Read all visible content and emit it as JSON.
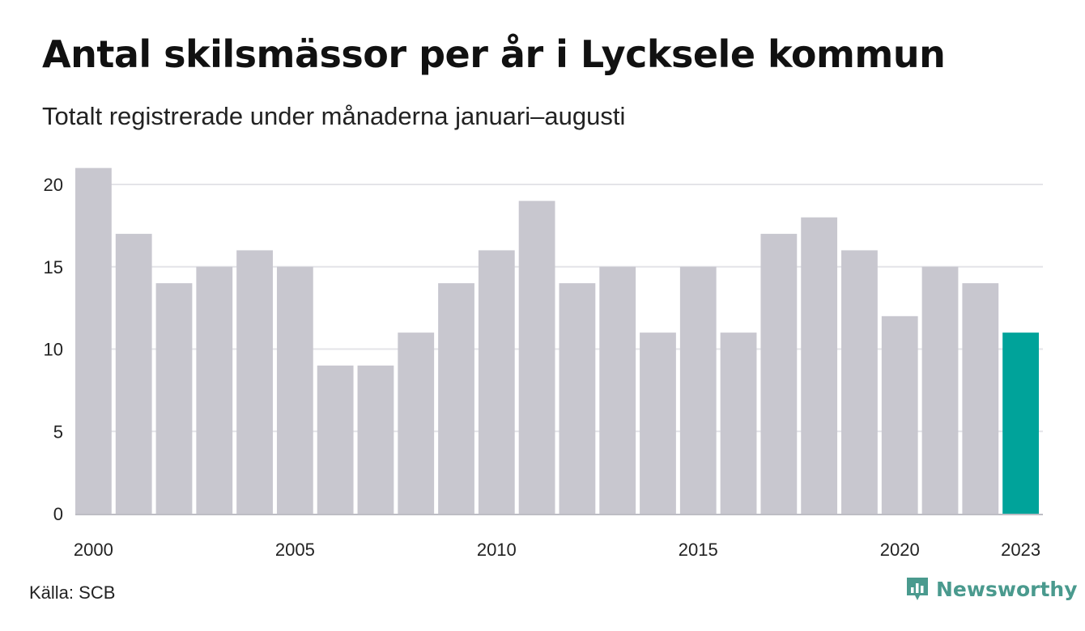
{
  "title": "Antal skilsmässor per år i Lycksele kommun",
  "subtitle": "Totalt registrerade under månaderna januari–augusti",
  "source": "Källa: SCB",
  "logo": {
    "text": "Newsworthy",
    "icon": "newsworthy-chart-icon"
  },
  "colors": {
    "bar": "#c8c7cf",
    "highlight": "#00a39a",
    "grid": "#e4e4e8",
    "logo": "#4a9a8e"
  },
  "chart_data": {
    "type": "bar",
    "categories": [
      "2000",
      "2001",
      "2002",
      "2003",
      "2004",
      "2005",
      "2006",
      "2007",
      "2008",
      "2009",
      "2010",
      "2011",
      "2012",
      "2013",
      "2014",
      "2015",
      "2016",
      "2017",
      "2018",
      "2019",
      "2020",
      "2021",
      "2022",
      "2023"
    ],
    "values": [
      21,
      17,
      14,
      15,
      16,
      15,
      9,
      9,
      11,
      14,
      16,
      19,
      14,
      15,
      11,
      15,
      11,
      17,
      18,
      16,
      12,
      15,
      14,
      11
    ],
    "x_tick_labels": [
      "2000",
      "2005",
      "2010",
      "2015",
      "2020",
      "2023"
    ],
    "y_ticks": [
      0,
      5,
      10,
      15,
      20
    ],
    "ylim": [
      0,
      21
    ],
    "highlight_category": "2023",
    "grid": true,
    "xlabel": "",
    "ylabel": ""
  }
}
